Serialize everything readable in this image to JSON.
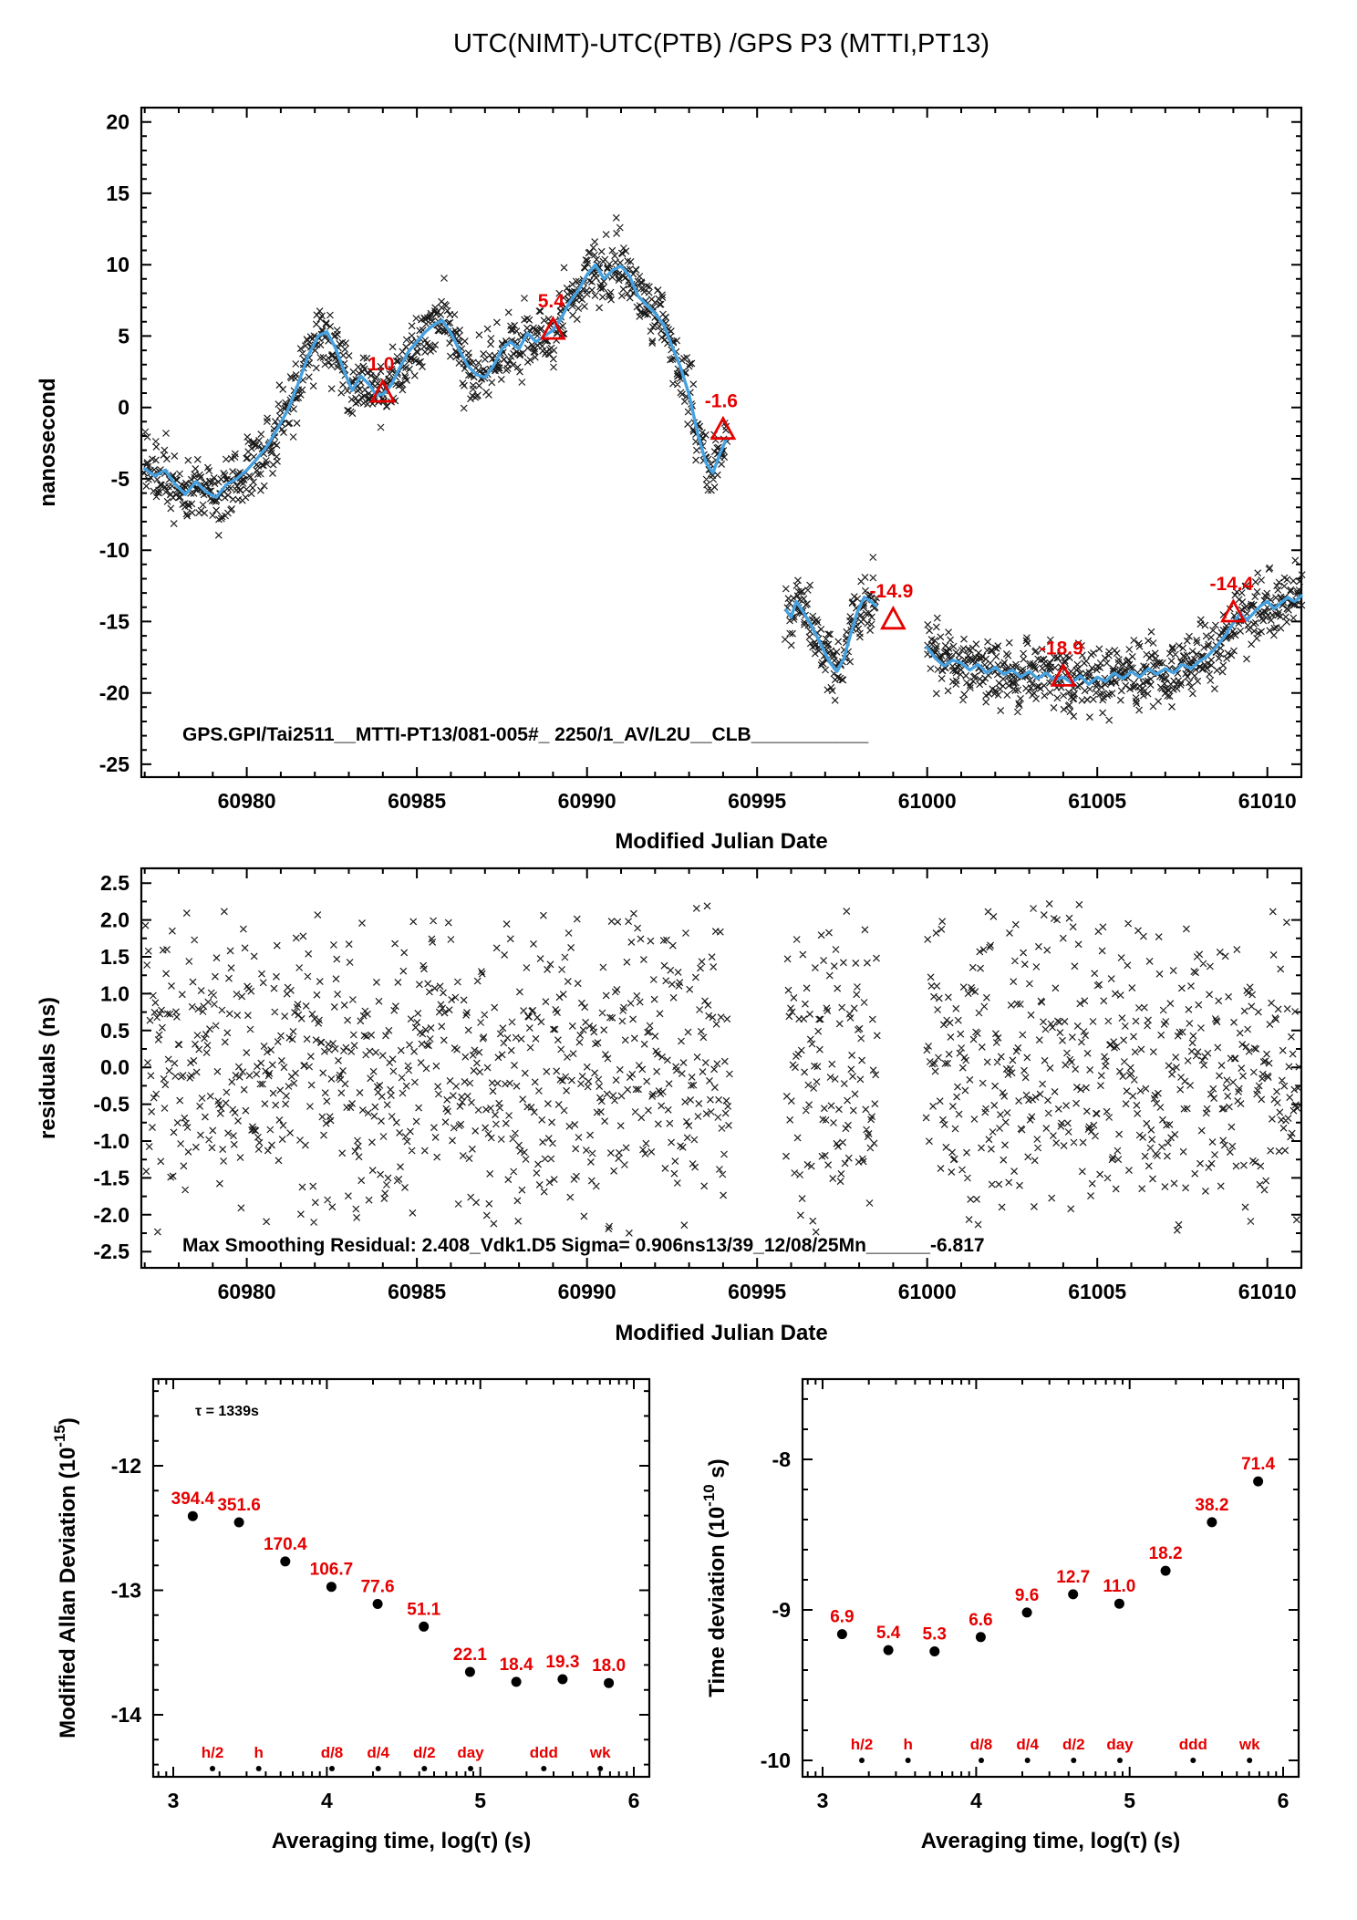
{
  "title": "UTC(NIMT)-UTC(PTB)  /GPS  P3  (MTTI,PT13)",
  "colors": {
    "red": "#e60000",
    "blue": "#45a1e0",
    "scatter": "#1a1a1a"
  },
  "chart_data": [
    {
      "type": "scatter",
      "title": "UTC(NIMT)-UTC(PTB)  /GPS  P3  (MTTI,PT13)",
      "xlabel": "Modified Julian Date",
      "ylabel": "nanosecond",
      "xlim": [
        60976.9,
        61011.0
      ],
      "ylim": [
        -25.9,
        21.0
      ],
      "xticks": [
        60980,
        60985,
        60990,
        60995,
        61000,
        61005,
        61010
      ],
      "yticks": [
        20,
        15,
        10,
        5,
        0,
        -5,
        -10,
        -15,
        -20,
        -25
      ],
      "grid": false,
      "footer": "GPS.GPI/Tai2511__MTTI-PT13/081-005#_  2250/1_AV/L2U__CLB___________",
      "triangle_markers": [
        {
          "x": 60984.0,
          "y": 1.0,
          "label": "1.0"
        },
        {
          "x": 60989.0,
          "y": 5.4,
          "label": "5.4"
        },
        {
          "x": 60994.0,
          "y": -1.6,
          "label": "-1.6"
        },
        {
          "x": 60999.0,
          "y": -14.9,
          "label": "-14.9"
        },
        {
          "x": 61004.0,
          "y": -18.9,
          "label": "-18.9"
        },
        {
          "x": 61009.0,
          "y": -14.4,
          "label": "-14.4"
        }
      ],
      "smooth_line_segments": [
        [
          [
            60977.0,
            -4.3
          ],
          [
            60977.3,
            -4.8
          ],
          [
            60977.6,
            -4.4
          ],
          [
            60977.9,
            -5.4
          ],
          [
            60978.2,
            -6.1
          ],
          [
            60978.5,
            -5.2
          ],
          [
            60978.8,
            -5.9
          ],
          [
            60979.1,
            -6.3
          ],
          [
            60979.4,
            -5.4
          ],
          [
            60979.7,
            -5.0
          ],
          [
            60980.0,
            -4.4
          ],
          [
            60980.3,
            -3.6
          ],
          [
            60980.6,
            -2.7
          ],
          [
            60980.9,
            -1.5
          ],
          [
            60981.2,
            -0.2
          ],
          [
            60981.5,
            1.6
          ],
          [
            60981.8,
            3.6
          ],
          [
            60982.1,
            5.0
          ],
          [
            60982.35,
            5.3
          ],
          [
            60982.6,
            4.2
          ],
          [
            60982.9,
            2.3
          ],
          [
            60983.1,
            1.2
          ],
          [
            60983.35,
            2.2
          ],
          [
            60983.6,
            1.6
          ],
          [
            60983.8,
            0.9
          ],
          [
            60984.0,
            0.9
          ],
          [
            60984.25,
            1.6
          ],
          [
            60984.5,
            2.8
          ],
          [
            60984.75,
            3.9
          ],
          [
            60985.0,
            4.6
          ],
          [
            60985.25,
            5.3
          ],
          [
            60985.5,
            5.8
          ],
          [
            60985.75,
            6.1
          ],
          [
            60986.0,
            5.2
          ],
          [
            60986.25,
            4.0
          ],
          [
            60986.5,
            2.9
          ],
          [
            60986.75,
            2.3
          ],
          [
            60987.0,
            2.1
          ],
          [
            60987.25,
            2.9
          ],
          [
            60987.5,
            4.1
          ],
          [
            60987.75,
            4.6
          ],
          [
            60988.0,
            4.1
          ],
          [
            60988.25,
            5.2
          ],
          [
            60988.5,
            4.6
          ],
          [
            60988.75,
            5.0
          ],
          [
            60989.0,
            5.4
          ],
          [
            60989.25,
            6.3
          ],
          [
            60989.5,
            7.4
          ],
          [
            60989.75,
            8.2
          ],
          [
            60990.0,
            9.3
          ],
          [
            60990.25,
            10.0
          ],
          [
            60990.5,
            9.0
          ],
          [
            60990.75,
            9.6
          ],
          [
            60991.0,
            9.9
          ],
          [
            60991.25,
            9.2
          ],
          [
            60991.5,
            7.8
          ],
          [
            60991.75,
            7.2
          ],
          [
            60992.0,
            6.6
          ],
          [
            60992.25,
            5.8
          ],
          [
            60992.5,
            4.3
          ],
          [
            60992.75,
            2.8
          ],
          [
            60993.0,
            0.9
          ],
          [
            60993.25,
            -1.8
          ],
          [
            60993.5,
            -3.9
          ],
          [
            60993.7,
            -4.6
          ],
          [
            60993.9,
            -3.3
          ],
          [
            60994.1,
            -2.2
          ]
        ],
        [
          [
            60995.85,
            -14.2
          ],
          [
            60996.0,
            -14.7
          ],
          [
            60996.15,
            -13.6
          ],
          [
            60996.35,
            -14.3
          ],
          [
            60996.55,
            -15.1
          ],
          [
            60996.75,
            -16.0
          ],
          [
            60996.95,
            -17.0
          ],
          [
            60997.15,
            -17.9
          ],
          [
            60997.35,
            -18.5
          ],
          [
            60997.55,
            -17.6
          ],
          [
            60997.75,
            -15.9
          ],
          [
            60997.95,
            -14.3
          ],
          [
            60998.15,
            -13.3
          ],
          [
            60998.35,
            -13.6
          ],
          [
            60998.5,
            -13.9
          ]
        ],
        [
          [
            61000.0,
            -16.8
          ],
          [
            61000.25,
            -17.6
          ],
          [
            61000.5,
            -18.1
          ],
          [
            61000.75,
            -17.7
          ],
          [
            61001.0,
            -17.9
          ],
          [
            61001.25,
            -18.4
          ],
          [
            61001.5,
            -18.0
          ],
          [
            61001.75,
            -18.6
          ],
          [
            61002.0,
            -18.2
          ],
          [
            61002.25,
            -18.7
          ],
          [
            61002.5,
            -18.4
          ],
          [
            61002.75,
            -18.9
          ],
          [
            61003.0,
            -18.5
          ],
          [
            61003.25,
            -19.0
          ],
          [
            61003.5,
            -18.6
          ],
          [
            61003.75,
            -19.1
          ],
          [
            61004.0,
            -18.9
          ],
          [
            61004.25,
            -19.3
          ],
          [
            61004.5,
            -18.8
          ],
          [
            61004.75,
            -19.4
          ],
          [
            61005.0,
            -18.9
          ],
          [
            61005.25,
            -19.2
          ],
          [
            61005.5,
            -18.6
          ],
          [
            61005.75,
            -19.0
          ],
          [
            61006.0,
            -18.5
          ],
          [
            61006.25,
            -18.9
          ],
          [
            61006.5,
            -18.3
          ],
          [
            61006.75,
            -18.7
          ],
          [
            61007.0,
            -18.3
          ],
          [
            61007.25,
            -18.6
          ],
          [
            61007.5,
            -18.0
          ],
          [
            61007.75,
            -18.3
          ],
          [
            61008.0,
            -17.8
          ],
          [
            61008.25,
            -17.4
          ],
          [
            61008.5,
            -16.8
          ],
          [
            61008.75,
            -16.0
          ],
          [
            61009.0,
            -15.1
          ],
          [
            61009.2,
            -14.4
          ],
          [
            61009.4,
            -14.9
          ],
          [
            61009.6,
            -14.4
          ],
          [
            61009.8,
            -13.9
          ],
          [
            61010.0,
            -13.6
          ],
          [
            61010.2,
            -14.1
          ],
          [
            61010.4,
            -13.7
          ],
          [
            61010.6,
            -13.3
          ],
          [
            61010.8,
            -13.6
          ],
          [
            61011.0,
            -13.2
          ]
        ]
      ],
      "scatter_model": {
        "seed": 87231,
        "sigma": 1.15,
        "step": 0.018,
        "x_jitter": 0.08,
        "mark": "x"
      }
    },
    {
      "type": "scatter",
      "xlabel": "Modified Julian Date",
      "ylabel": "residuals (ns)",
      "xlim": [
        60976.9,
        61011.0
      ],
      "ylim": [
        -2.72,
        2.7
      ],
      "xticks": [
        60980,
        60985,
        60990,
        60995,
        61000,
        61005,
        61010
      ],
      "yticks": [
        2.5,
        2.0,
        1.5,
        1.0,
        0.5,
        0.0,
        -0.5,
        -1.0,
        -1.5,
        -2.0,
        -2.5
      ],
      "ytick_labels": [
        "2.5",
        "2.0",
        "1.5",
        "1.0",
        "0.5",
        "0.0",
        "-0.5",
        "-1.0",
        "-1.5",
        "-2.0",
        "-2.5"
      ],
      "grid": false,
      "footer": "Max Smoothing Residual: 2.408_Vdk1.D5  Sigma= 0.906ns13/39_12/08/25Mn______-6.817",
      "data_gaps": [
        [
          60994.2,
          60995.85
        ],
        [
          60998.55,
          60999.95
        ]
      ],
      "scatter_model": {
        "seed": 550137,
        "sigma": 1.05,
        "step": 0.0225,
        "clip": 2.28,
        "mark": "x"
      }
    },
    {
      "type": "scatter",
      "xlabel": "Averaging time, log(τ) (s)",
      "ylabel": "Modified Allan Deviation (10^-15)",
      "ylabel_parts": [
        "Modified Allan Deviation (10",
        "-15",
        ")"
      ],
      "xlim": [
        2.869,
        6.101
      ],
      "ylim": [
        -14.498,
        -11.304
      ],
      "xticks": [
        3,
        4,
        5,
        6
      ],
      "yticks": [
        -12,
        -13,
        -14
      ],
      "grid": false,
      "annotation": "τ = 1339s",
      "value_exponent": -15,
      "points": [
        {
          "logtau": 3.127,
          "value": 394.4,
          "label": "394.4"
        },
        {
          "logtau": 3.428,
          "value": 351.6,
          "label": "351.6"
        },
        {
          "logtau": 3.729,
          "value": 170.4,
          "label": "170.4"
        },
        {
          "logtau": 4.03,
          "value": 106.7,
          "label": "106.7"
        },
        {
          "logtau": 4.331,
          "value": 77.6,
          "label": "77.6"
        },
        {
          "logtau": 4.632,
          "value": 51.1,
          "label": "51.1"
        },
        {
          "logtau": 4.933,
          "value": 22.1,
          "label": "22.1"
        },
        {
          "logtau": 5.234,
          "value": 18.4,
          "label": "18.4"
        },
        {
          "logtau": 5.536,
          "value": 19.3,
          "label": "19.3"
        },
        {
          "logtau": 5.837,
          "value": 18.0,
          "label": "18.0"
        }
      ],
      "tau_marks": [
        {
          "label": "h/2",
          "logtau": 3.2553
        },
        {
          "label": "h",
          "logtau": 3.5563
        },
        {
          "label": "d/8",
          "logtau": 4.0334
        },
        {
          "label": "d/4",
          "logtau": 4.3345
        },
        {
          "label": "d/2",
          "logtau": 4.6355
        },
        {
          "label": "day",
          "logtau": 4.9365
        },
        {
          "label": "ddd",
          "logtau": 5.4137
        },
        {
          "label": "wk",
          "logtau": 5.7816
        }
      ]
    },
    {
      "type": "scatter",
      "xlabel": "Averaging time, log(τ) (s)",
      "ylabel": "Time deviation (10^-10 s)",
      "ylabel_parts": [
        "Time deviation (10",
        "-10",
        " s)"
      ],
      "xlim": [
        2.869,
        6.101
      ],
      "ylim": [
        -10.109,
        -7.467
      ],
      "xticks": [
        3,
        4,
        5,
        6
      ],
      "yticks": [
        -8,
        -9,
        -10
      ],
      "grid": false,
      "value_exponent": -10,
      "baseline_marks_y": -10,
      "points": [
        {
          "logtau": 3.127,
          "value": 6.9,
          "label": "6.9"
        },
        {
          "logtau": 3.428,
          "value": 5.4,
          "label": "5.4"
        },
        {
          "logtau": 3.729,
          "value": 5.3,
          "label": "5.3"
        },
        {
          "logtau": 4.03,
          "value": 6.6,
          "label": "6.6"
        },
        {
          "logtau": 4.331,
          "value": 9.6,
          "label": "9.6"
        },
        {
          "logtau": 4.632,
          "value": 12.7,
          "label": "12.7"
        },
        {
          "logtau": 4.933,
          "value": 11.0,
          "label": "11.0"
        },
        {
          "logtau": 5.234,
          "value": 18.2,
          "label": "18.2"
        },
        {
          "logtau": 5.536,
          "value": 38.2,
          "label": "38.2"
        },
        {
          "logtau": 5.837,
          "value": 71.4,
          "label": "71.4"
        }
      ],
      "tau_marks": [
        {
          "label": "h/2",
          "logtau": 3.2553
        },
        {
          "label": "h",
          "logtau": 3.5563
        },
        {
          "label": "d/8",
          "logtau": 4.0334
        },
        {
          "label": "d/4",
          "logtau": 4.3345
        },
        {
          "label": "d/2",
          "logtau": 4.6355
        },
        {
          "label": "day",
          "logtau": 4.9365
        },
        {
          "label": "ddd",
          "logtau": 5.4137
        },
        {
          "label": "wk",
          "logtau": 5.7816
        }
      ]
    }
  ]
}
